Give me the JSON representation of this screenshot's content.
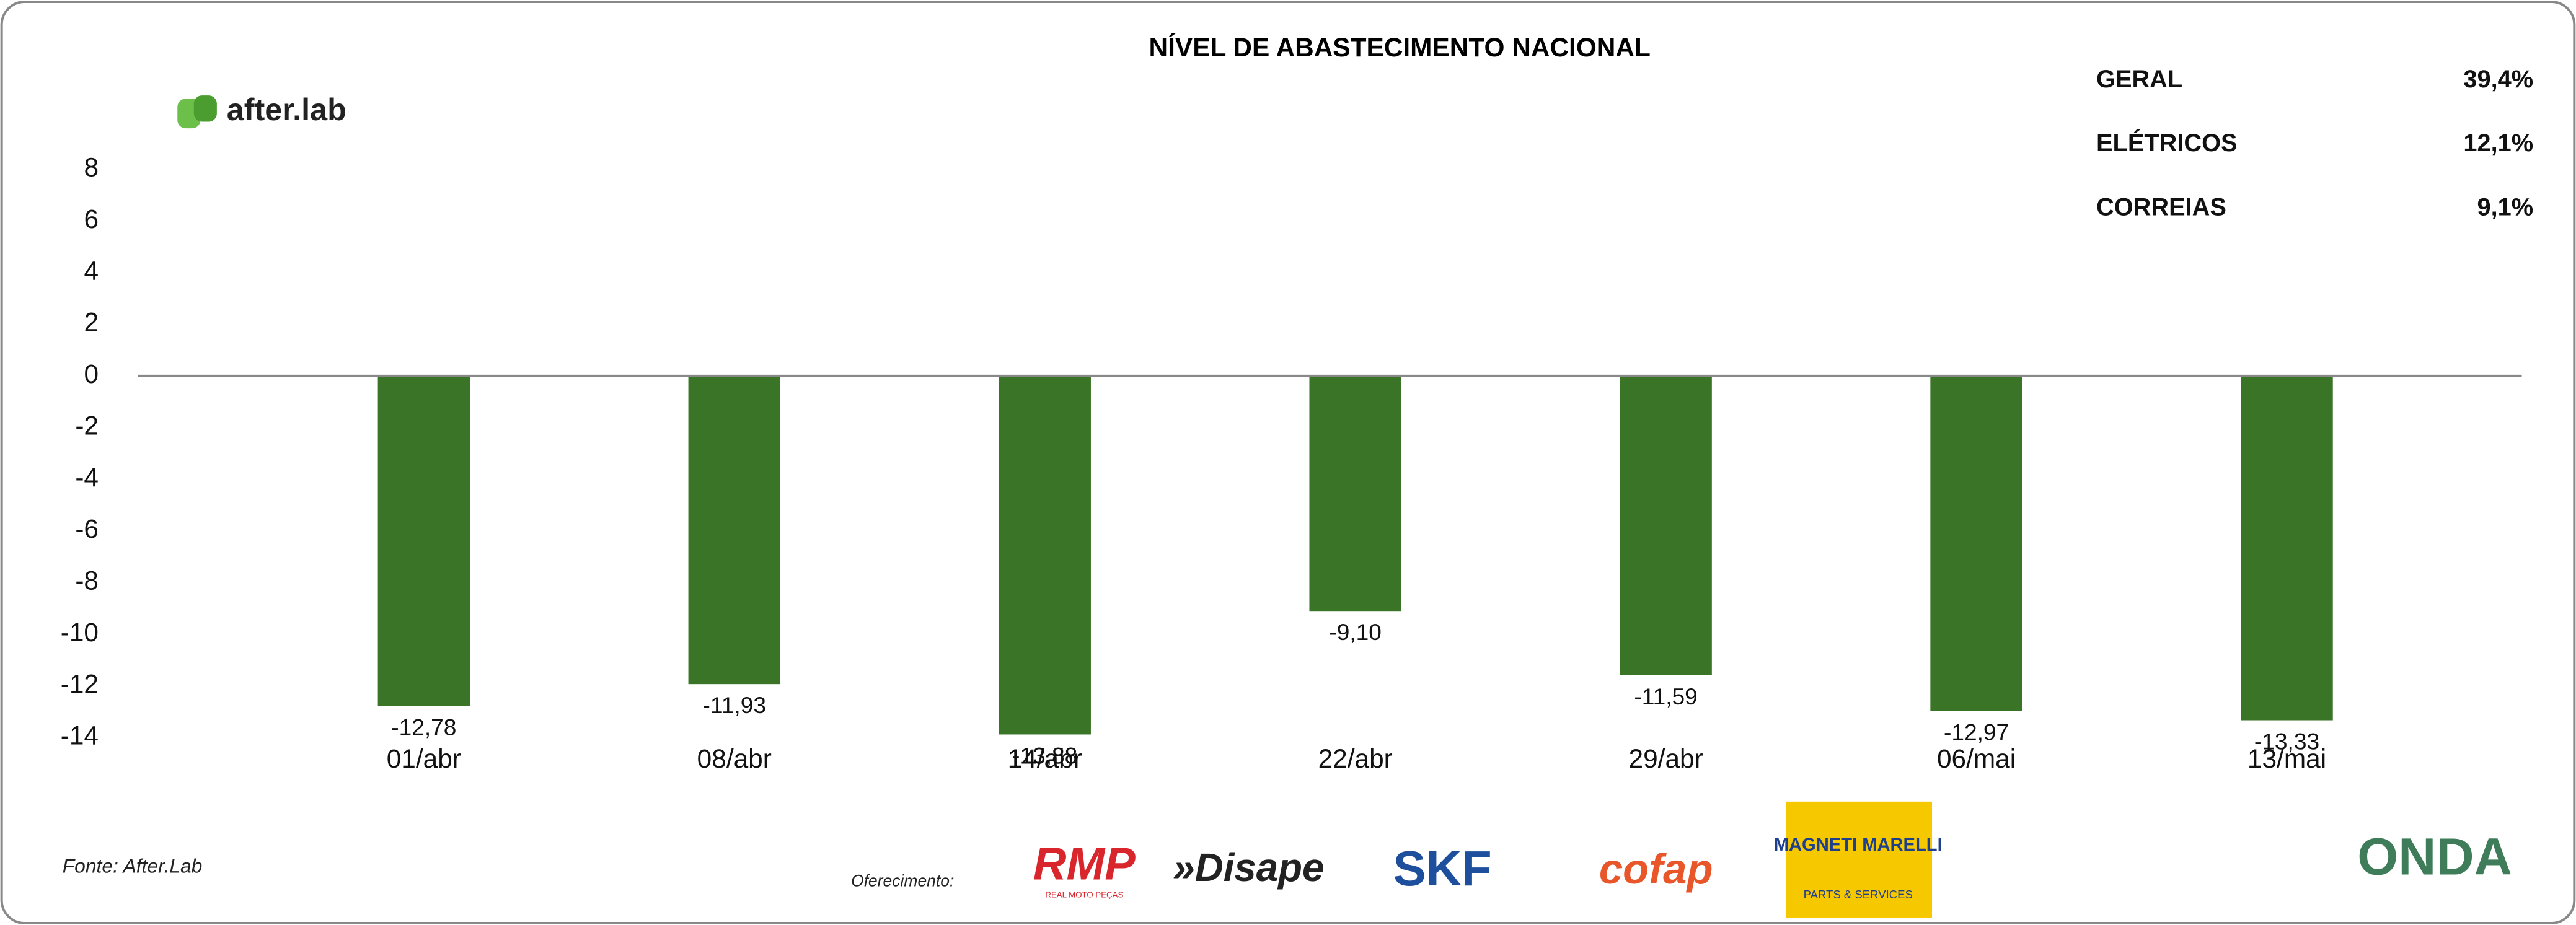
{
  "chart_data": {
    "type": "bar",
    "title": "NÍVEL DE ABASTECIMENTO NACIONAL",
    "categories": [
      "01/abr",
      "08/abr",
      "14/abr",
      "22/abr",
      "29/abr",
      "06/mai",
      "13/mai"
    ],
    "values": [
      -12.78,
      -11.93,
      -13.88,
      -9.1,
      -11.59,
      -12.97,
      -13.33
    ],
    "value_labels": [
      "-12,78",
      "-11,93",
      "-13,88",
      "-9,10",
      "-11,59",
      "-12,97",
      "-13,33"
    ],
    "color": "#3a7426",
    "ylim": [
      -14,
      8
    ],
    "yticks": [
      8,
      6,
      4,
      2,
      0,
      -2,
      -4,
      -6,
      -8,
      -10,
      -12,
      -14
    ],
    "grid": false,
    "stats": [
      {
        "label": "GERAL",
        "value": "39,4%"
      },
      {
        "label": "ELÉTRICOS",
        "value": "12,1%"
      },
      {
        "label": "CORREIAS",
        "value": "9,1%"
      }
    ],
    "brand": "after.lab",
    "source": "Fonte: After.Lab",
    "sponsor_label": "Oferecimento:",
    "sponsors": [
      "RMP",
      "REAL MOTO PEÇAS",
      "»Disape",
      "SKF",
      "cofap",
      "MAGNETI MARELLI",
      "PARTS & SERVICES",
      "ONDA"
    ]
  }
}
